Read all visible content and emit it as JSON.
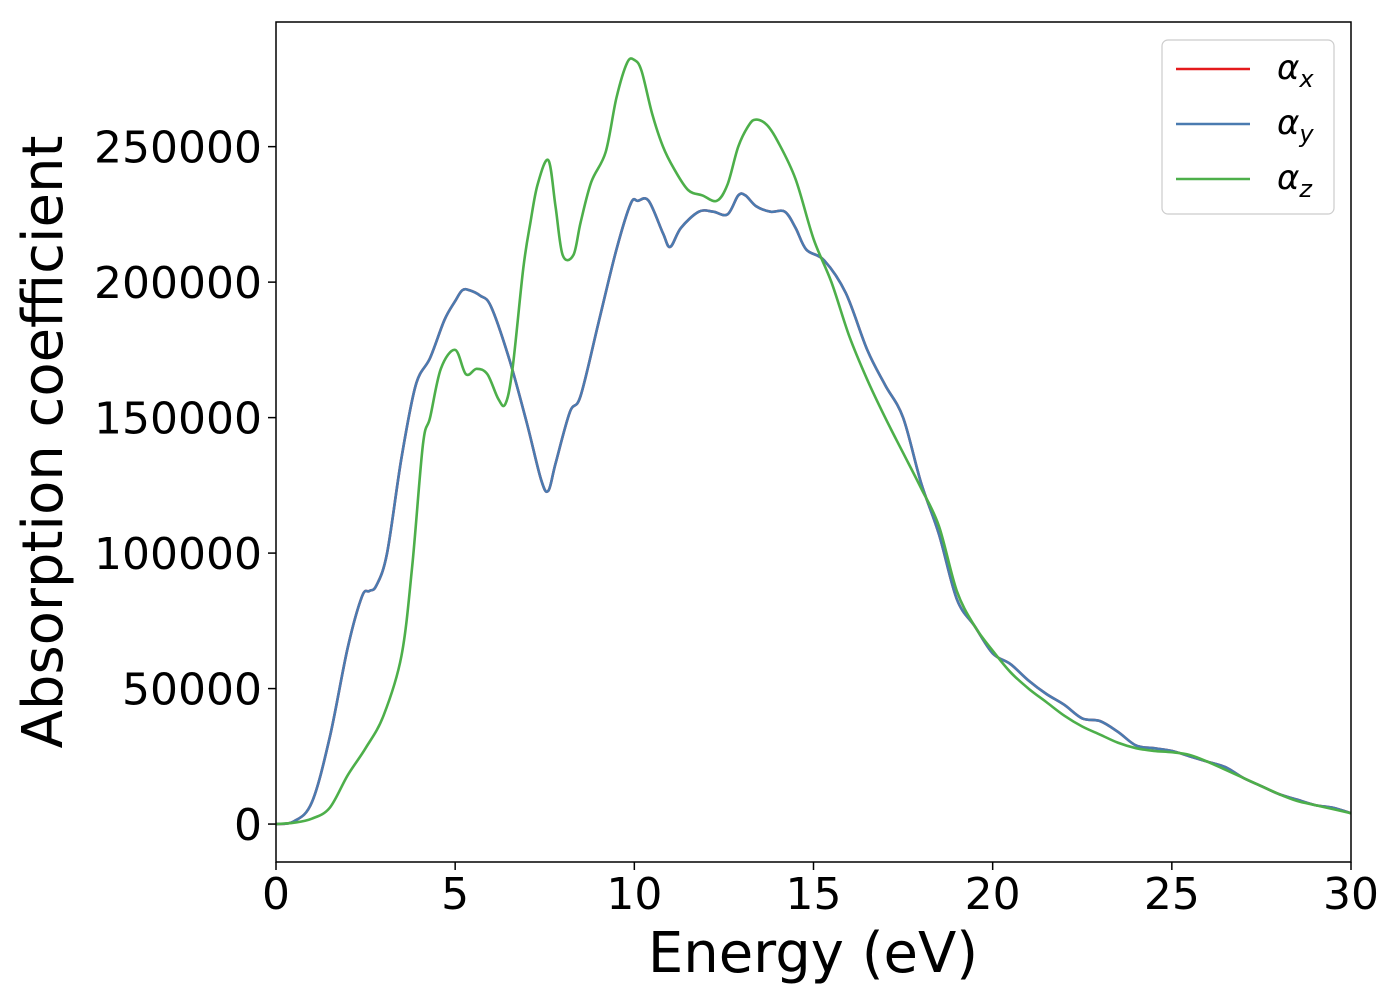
{
  "chart_data": {
    "type": "line",
    "title": "",
    "xlabel": "Energy (eV)",
    "ylabel": "Absorption coefficient",
    "xlim": [
      0,
      30
    ],
    "ylim": [
      -14000,
      296000
    ],
    "xticks": [
      0,
      5,
      10,
      15,
      20,
      25,
      30
    ],
    "xtick_labels": [
      "0",
      "5",
      "10",
      "15",
      "20",
      "25",
      "30"
    ],
    "yticks": [
      0,
      50000,
      100000,
      150000,
      200000,
      250000
    ],
    "ytick_labels": [
      "0",
      "50000",
      "100000",
      "150000",
      "200000",
      "250000"
    ],
    "grid": false,
    "legend_position": "top-right",
    "series": [
      {
        "name": "α_x",
        "label_base": "α",
        "label_sub": "x",
        "color": "#e41a1c",
        "x": [
          0,
          0.5,
          1.0,
          1.5,
          2.0,
          2.4,
          2.6,
          2.8,
          3.1,
          3.5,
          3.9,
          4.3,
          4.7,
          5.0,
          5.2,
          5.4,
          5.7,
          6.0,
          6.5,
          7.0,
          7.4,
          7.6,
          7.8,
          8.2,
          8.5,
          9.0,
          9.5,
          9.9,
          10.1,
          10.4,
          10.8,
          11.0,
          11.3,
          11.8,
          12.2,
          12.6,
          12.9,
          13.1,
          13.4,
          13.8,
          14.2,
          14.5,
          14.8,
          15.3,
          15.9,
          16.5,
          17.0,
          17.5,
          18.0,
          18.5,
          19.0,
          19.5,
          20.0,
          20.5,
          21.0,
          21.5,
          22.0,
          22.5,
          23.0,
          23.5,
          24.0,
          24.5,
          25.0,
          25.5,
          26.0,
          26.5,
          27.0,
          27.5,
          28.0,
          28.5,
          29.0,
          29.5,
          30.0
        ],
        "y": [
          0,
          1000,
          8000,
          32000,
          65000,
          84000,
          86000,
          88000,
          100000,
          135000,
          162000,
          172000,
          186000,
          193000,
          197000,
          197000,
          195000,
          191000,
          172000,
          148000,
          127000,
          123000,
          133000,
          152000,
          158000,
          185000,
          212000,
          229000,
          230000,
          230000,
          218000,
          213000,
          220000,
          226000,
          226000,
          225000,
          232000,
          232000,
          228000,
          226000,
          226000,
          220000,
          212000,
          208000,
          196000,
          175000,
          162000,
          150000,
          126000,
          107000,
          83000,
          73000,
          63000,
          59000,
          53000,
          48000,
          44000,
          39000,
          38000,
          34000,
          29000,
          28000,
          27000,
          25000,
          23000,
          21000,
          17000,
          14000,
          11000,
          9000,
          7000,
          6000,
          4000
        ]
      },
      {
        "name": "α_y",
        "label_base": "α",
        "label_sub": "y",
        "color": "#4a7bb0",
        "x": [
          0,
          0.5,
          1.0,
          1.5,
          2.0,
          2.4,
          2.6,
          2.8,
          3.1,
          3.5,
          3.9,
          4.3,
          4.7,
          5.0,
          5.2,
          5.4,
          5.7,
          6.0,
          6.5,
          7.0,
          7.4,
          7.6,
          7.8,
          8.2,
          8.5,
          9.0,
          9.5,
          9.9,
          10.1,
          10.4,
          10.8,
          11.0,
          11.3,
          11.8,
          12.2,
          12.6,
          12.9,
          13.1,
          13.4,
          13.8,
          14.2,
          14.5,
          14.8,
          15.3,
          15.9,
          16.5,
          17.0,
          17.5,
          18.0,
          18.5,
          19.0,
          19.5,
          20.0,
          20.5,
          21.0,
          21.5,
          22.0,
          22.5,
          23.0,
          23.5,
          24.0,
          24.5,
          25.0,
          25.5,
          26.0,
          26.5,
          27.0,
          27.5,
          28.0,
          28.5,
          29.0,
          29.5,
          30.0
        ],
        "y": [
          0,
          1000,
          8000,
          32000,
          65000,
          84000,
          86000,
          88000,
          100000,
          135000,
          162000,
          172000,
          186000,
          193000,
          197000,
          197000,
          195000,
          191000,
          172000,
          148000,
          127000,
          123000,
          133000,
          152000,
          158000,
          185000,
          212000,
          229000,
          230000,
          230000,
          218000,
          213000,
          220000,
          226000,
          226000,
          225000,
          232000,
          232000,
          228000,
          226000,
          226000,
          220000,
          212000,
          208000,
          196000,
          175000,
          162000,
          150000,
          126000,
          107000,
          83000,
          73000,
          63000,
          59000,
          53000,
          48000,
          44000,
          39000,
          38000,
          34000,
          29000,
          28000,
          27000,
          25000,
          23000,
          21000,
          17000,
          14000,
          11000,
          9000,
          7000,
          6000,
          4000
        ]
      },
      {
        "name": "α_z",
        "label_base": "α",
        "label_sub": "z",
        "color": "#4daf4a",
        "x": [
          0,
          0.5,
          1.0,
          1.5,
          2.0,
          2.5,
          3.0,
          3.5,
          3.8,
          4.1,
          4.3,
          4.6,
          5.0,
          5.3,
          5.6,
          5.9,
          6.2,
          6.4,
          6.6,
          6.9,
          7.1,
          7.3,
          7.6,
          7.8,
          8.0,
          8.3,
          8.5,
          8.8,
          9.2,
          9.5,
          9.8,
          10.0,
          10.2,
          10.5,
          10.8,
          11.1,
          11.5,
          11.9,
          12.3,
          12.6,
          12.9,
          13.2,
          13.4,
          13.7,
          14.0,
          14.5,
          15.0,
          15.5,
          16.0,
          16.5,
          17.0,
          17.5,
          18.0,
          18.5,
          19.0,
          19.5,
          20.0,
          20.5,
          21.0,
          21.5,
          22.0,
          22.5,
          23.0,
          23.5,
          24.0,
          24.5,
          25.0,
          25.5,
          26.0,
          26.5,
          27.0,
          27.5,
          28.0,
          28.5,
          29.0,
          29.5,
          30.0
        ],
        "y": [
          0,
          500,
          2000,
          6000,
          18000,
          28000,
          40000,
          62000,
          95000,
          140000,
          150000,
          168000,
          175000,
          166000,
          168000,
          166000,
          157000,
          155000,
          168000,
          205000,
          222000,
          236000,
          245000,
          228000,
          210000,
          210000,
          222000,
          237000,
          248000,
          268000,
          281000,
          282000,
          278000,
          262000,
          250000,
          242000,
          234000,
          232000,
          230000,
          236000,
          250000,
          258000,
          260000,
          258000,
          252000,
          238000,
          216000,
          200000,
          180000,
          164000,
          150000,
          137000,
          124000,
          110000,
          86000,
          73000,
          64000,
          56000,
          50000,
          45000,
          40000,
          36000,
          33000,
          30000,
          28000,
          27000,
          26500,
          25500,
          23000,
          20000,
          17000,
          14000,
          11000,
          8500,
          7000,
          5500,
          4000
        ]
      }
    ]
  }
}
